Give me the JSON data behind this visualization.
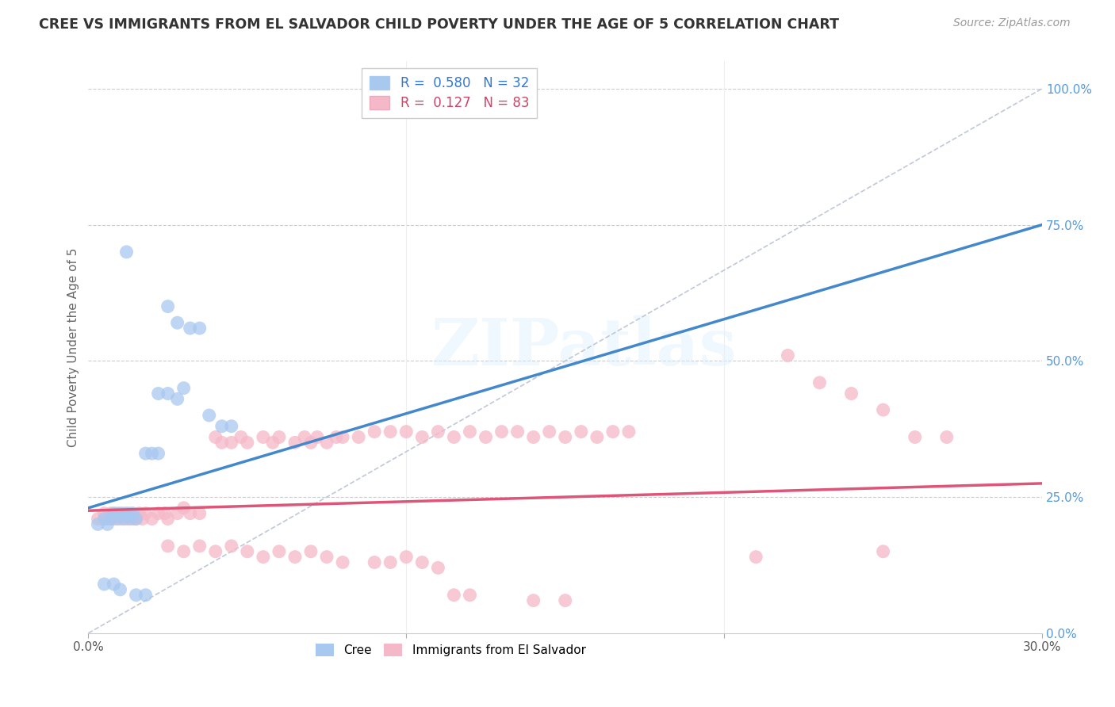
{
  "title": "CREE VS IMMIGRANTS FROM EL SALVADOR CHILD POVERTY UNDER THE AGE OF 5 CORRELATION CHART",
  "source": "Source: ZipAtlas.com",
  "ylabel": "Child Poverty Under the Age of 5",
  "xmin": 0.0,
  "xmax": 0.3,
  "ymin": 0.0,
  "ymax": 1.05,
  "cree_color": "#a8c8f0",
  "salvador_color": "#f5b8c8",
  "cree_line_color": "#4488cc",
  "salvador_line_color": "#dd5577",
  "diagonal_color": "#c0c8d8",
  "watermark": "ZIPatlas",
  "cree_line_x0": 0.0,
  "cree_line_y0": 0.23,
  "cree_line_x1": 0.3,
  "cree_line_y1": 0.75,
  "salv_line_x0": 0.0,
  "salv_line_y0": 0.225,
  "salv_line_x1": 0.3,
  "salv_line_y1": 0.275,
  "cree_scatter": [
    [
      0.003,
      0.2
    ],
    [
      0.005,
      0.21
    ],
    [
      0.006,
      0.2
    ],
    [
      0.007,
      0.21
    ],
    [
      0.008,
      0.22
    ],
    [
      0.009,
      0.21
    ],
    [
      0.01,
      0.22
    ],
    [
      0.011,
      0.21
    ],
    [
      0.012,
      0.22
    ],
    [
      0.013,
      0.21
    ],
    [
      0.014,
      0.22
    ],
    [
      0.015,
      0.21
    ],
    [
      0.012,
      0.7
    ],
    [
      0.025,
      0.6
    ],
    [
      0.028,
      0.57
    ],
    [
      0.032,
      0.56
    ],
    [
      0.035,
      0.56
    ],
    [
      0.022,
      0.44
    ],
    [
      0.03,
      0.45
    ],
    [
      0.028,
      0.43
    ],
    [
      0.025,
      0.44
    ],
    [
      0.038,
      0.4
    ],
    [
      0.042,
      0.38
    ],
    [
      0.045,
      0.38
    ],
    [
      0.018,
      0.33
    ],
    [
      0.02,
      0.33
    ],
    [
      0.022,
      0.33
    ],
    [
      0.005,
      0.09
    ],
    [
      0.008,
      0.09
    ],
    [
      0.01,
      0.08
    ],
    [
      0.015,
      0.07
    ],
    [
      0.018,
      0.07
    ]
  ],
  "salvador_scatter": [
    [
      0.003,
      0.21
    ],
    [
      0.005,
      0.22
    ],
    [
      0.006,
      0.21
    ],
    [
      0.007,
      0.22
    ],
    [
      0.008,
      0.21
    ],
    [
      0.009,
      0.22
    ],
    [
      0.01,
      0.21
    ],
    [
      0.011,
      0.22
    ],
    [
      0.012,
      0.21
    ],
    [
      0.013,
      0.22
    ],
    [
      0.014,
      0.21
    ],
    [
      0.015,
      0.21
    ],
    [
      0.016,
      0.22
    ],
    [
      0.017,
      0.21
    ],
    [
      0.018,
      0.22
    ],
    [
      0.02,
      0.21
    ],
    [
      0.022,
      0.22
    ],
    [
      0.024,
      0.22
    ],
    [
      0.025,
      0.21
    ],
    [
      0.028,
      0.22
    ],
    [
      0.03,
      0.23
    ],
    [
      0.032,
      0.22
    ],
    [
      0.035,
      0.22
    ],
    [
      0.04,
      0.36
    ],
    [
      0.042,
      0.35
    ],
    [
      0.045,
      0.35
    ],
    [
      0.048,
      0.36
    ],
    [
      0.05,
      0.35
    ],
    [
      0.055,
      0.36
    ],
    [
      0.058,
      0.35
    ],
    [
      0.06,
      0.36
    ],
    [
      0.065,
      0.35
    ],
    [
      0.068,
      0.36
    ],
    [
      0.07,
      0.35
    ],
    [
      0.072,
      0.36
    ],
    [
      0.075,
      0.35
    ],
    [
      0.078,
      0.36
    ],
    [
      0.08,
      0.36
    ],
    [
      0.085,
      0.36
    ],
    [
      0.09,
      0.37
    ],
    [
      0.095,
      0.37
    ],
    [
      0.1,
      0.37
    ],
    [
      0.105,
      0.36
    ],
    [
      0.11,
      0.37
    ],
    [
      0.115,
      0.36
    ],
    [
      0.12,
      0.37
    ],
    [
      0.125,
      0.36
    ],
    [
      0.13,
      0.37
    ],
    [
      0.135,
      0.37
    ],
    [
      0.14,
      0.36
    ],
    [
      0.145,
      0.37
    ],
    [
      0.15,
      0.36
    ],
    [
      0.155,
      0.37
    ],
    [
      0.16,
      0.36
    ],
    [
      0.165,
      0.37
    ],
    [
      0.17,
      0.37
    ],
    [
      0.025,
      0.16
    ],
    [
      0.03,
      0.15
    ],
    [
      0.035,
      0.16
    ],
    [
      0.04,
      0.15
    ],
    [
      0.045,
      0.16
    ],
    [
      0.05,
      0.15
    ],
    [
      0.055,
      0.14
    ],
    [
      0.06,
      0.15
    ],
    [
      0.065,
      0.14
    ],
    [
      0.07,
      0.15
    ],
    [
      0.075,
      0.14
    ],
    [
      0.08,
      0.13
    ],
    [
      0.09,
      0.13
    ],
    [
      0.095,
      0.13
    ],
    [
      0.1,
      0.14
    ],
    [
      0.105,
      0.13
    ],
    [
      0.11,
      0.12
    ],
    [
      0.115,
      0.07
    ],
    [
      0.12,
      0.07
    ],
    [
      0.14,
      0.06
    ],
    [
      0.15,
      0.06
    ],
    [
      0.22,
      0.51
    ],
    [
      0.24,
      0.44
    ],
    [
      0.23,
      0.46
    ],
    [
      0.25,
      0.41
    ],
    [
      0.26,
      0.36
    ],
    [
      0.27,
      0.36
    ],
    [
      0.21,
      0.14
    ],
    [
      0.25,
      0.15
    ]
  ]
}
